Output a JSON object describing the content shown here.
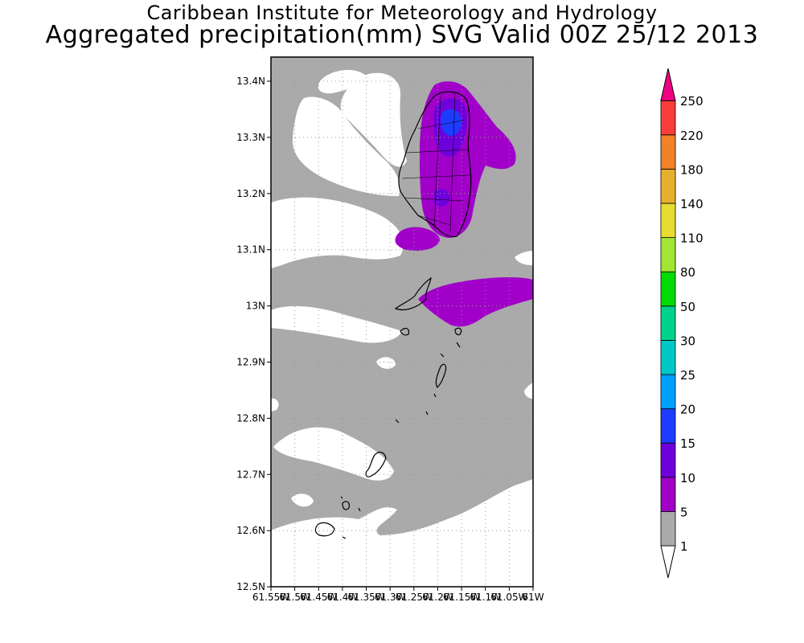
{
  "header": {
    "title": "Caribbean Institute for Meteorology and Hydrology",
    "subtitle": "Aggregated precipitation(mm) SVG Valid 00Z 25/12 2013"
  },
  "map": {
    "lat_ticks": [
      "13.4N",
      "13.3N",
      "13.2N",
      "13.1N",
      "13N",
      "12.9N",
      "12.8N",
      "12.7N",
      "12.6N",
      "12.5N"
    ],
    "lon_ticks": [
      "61.55W",
      "61.5W",
      "61.45W",
      "61.4W",
      "61.35W",
      "61.3W",
      "61.25W",
      "61.2W",
      "61.15W",
      "61.1W",
      "61.05W",
      "61W"
    ],
    "fill_colors": {
      "background": "#ffffff",
      "1_to_5": "#aaaaaa",
      "5_to_10": "#a000c8",
      "10_to_15": "#6e00dc",
      "15_to_20": "#1e3cff"
    }
  },
  "legend": {
    "levels": [
      "1",
      "5",
      "10",
      "15",
      "20",
      "25",
      "30",
      "50",
      "80",
      "110",
      "140",
      "180",
      "220",
      "250"
    ],
    "colors": [
      "#aaaaaa",
      "#a000c8",
      "#6e00dc",
      "#1e3cff",
      "#00a0ff",
      "#00c8c8",
      "#00d28c",
      "#00dc00",
      "#a0e632",
      "#e6dc32",
      "#e6af2d",
      "#f08228",
      "#fa3c3c",
      "#f00082"
    ],
    "low_cap_color": "#ffffff",
    "high_cap_color": "#f00082"
  }
}
